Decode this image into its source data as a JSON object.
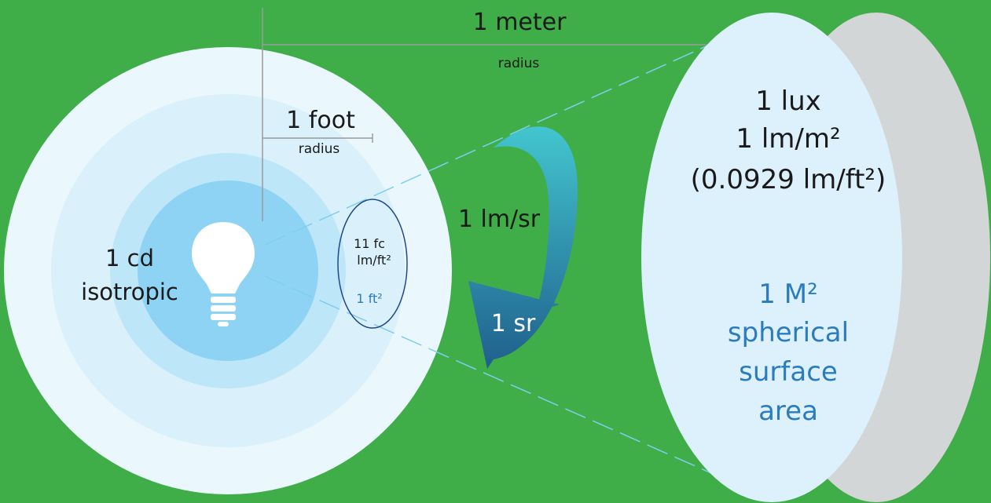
{
  "meter": {
    "label": "1 meter",
    "sub": "radius"
  },
  "foot": {
    "label": "1 foot",
    "sub": "radius"
  },
  "source": {
    "line1": "1 cd",
    "line2": "isotropic"
  },
  "small_patch": {
    "line1": "11 fc",
    "line2": "lm/ft²",
    "area": "1 ft²"
  },
  "flux": {
    "label": "1 lm/sr"
  },
  "solid_angle": {
    "label": "1 sr"
  },
  "illuminance": {
    "line1": "1 lux",
    "line2": "1 lm/m²",
    "line3": "(0.0929 lm/ft²)"
  },
  "area": {
    "line1": "1 M²",
    "line2": "spherical",
    "line3": "surface",
    "line4": "area"
  },
  "colors": {
    "background": "#3fae49",
    "outer_sphere": "#eaf7fd",
    "mid_sphere": "#bde6f9",
    "inner_sphere": "#8fd3f4",
    "text_dark": "#1a1a1a",
    "text_blue": "#2b7bbf",
    "arrow_light": "#43c6cf",
    "arrow_dark": "#1f5f8c",
    "disc_face": "#dcf1fb",
    "disc_edge": "#d3d6d6"
  }
}
